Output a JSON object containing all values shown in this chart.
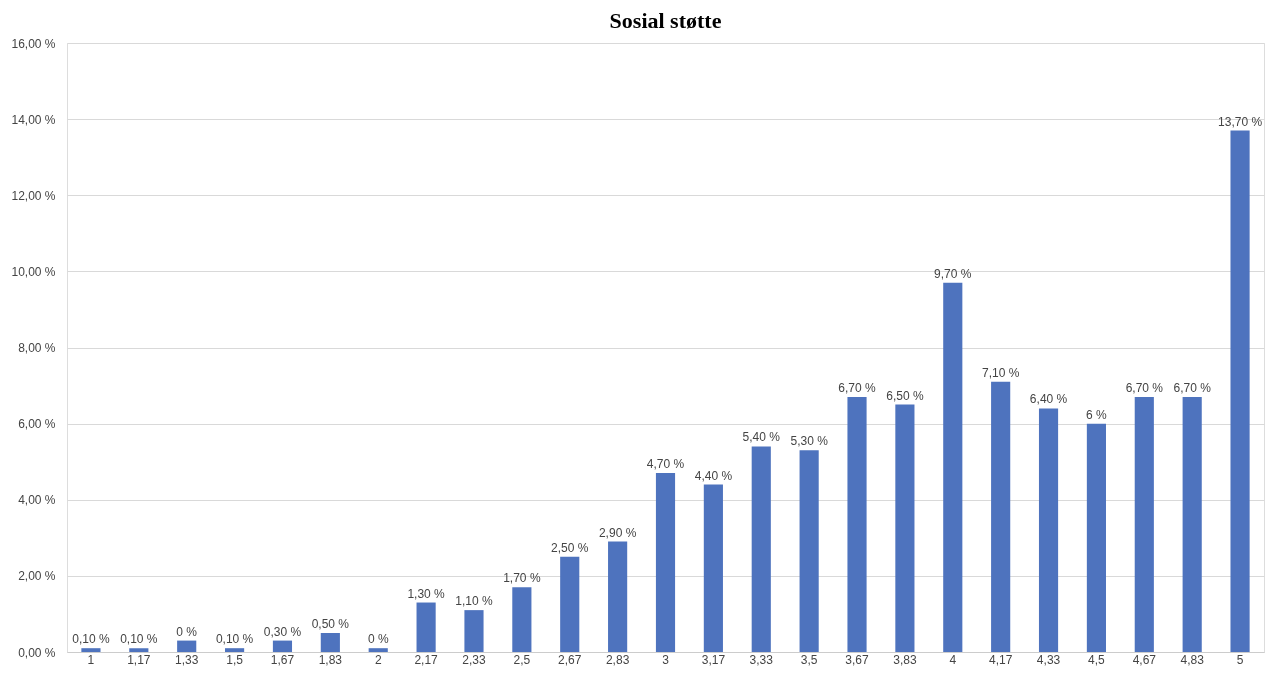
{
  "chart_data": {
    "type": "bar",
    "title": "Sosial støtte",
    "categories": [
      "1",
      "1,17",
      "1,33",
      "1,5",
      "1,67",
      "1,83",
      "2",
      "2,17",
      "2,33",
      "2,5",
      "2,67",
      "2,83",
      "3",
      "3,17",
      "3,33",
      "3,5",
      "3,67",
      "3,83",
      "4",
      "4,17",
      "4,33",
      "4,5",
      "4,67",
      "4,83",
      "5"
    ],
    "values": [
      0.1,
      0.1,
      0.3,
      0.1,
      0.3,
      0.5,
      0.1,
      1.3,
      1.1,
      1.7,
      2.5,
      2.9,
      4.7,
      4.4,
      5.4,
      5.3,
      6.7,
      6.5,
      9.7,
      7.1,
      6.4,
      6.0,
      6.7,
      6.7,
      13.7
    ],
    "value_labels": [
      "0,10 %",
      "0,10 %",
      "0 %",
      "0,10 %",
      "0,30 %",
      "0,50 %",
      "0 %",
      "1,30 %",
      "1,10 %",
      "1,70 %",
      "2,50 %",
      "2,90 %",
      "4,70 %",
      "4,40 %",
      "5,40 %",
      "5,30 %",
      "6,70 %",
      "6,50 %",
      "9,70 %",
      "7,10 %",
      "6,40 %",
      "6 %",
      "6,70 %",
      "6,70 %",
      "13,70 %"
    ],
    "color": "#4e73be",
    "ylim": [
      0,
      16
    ],
    "yticks": [
      {
        "value": 0,
        "label": "0,00 %"
      },
      {
        "value": 2,
        "label": "2,00 %"
      },
      {
        "value": 4,
        "label": "4,00 %"
      },
      {
        "value": 6,
        "label": "6,00 %"
      },
      {
        "value": 8,
        "label": "8,00 %"
      },
      {
        "value": 10,
        "label": "10,00 %"
      },
      {
        "value": 12,
        "label": "12,00 %"
      },
      {
        "value": 14,
        "label": "14,00 %"
      },
      {
        "value": 16,
        "label": "16,00 %"
      }
    ],
    "grid": "y"
  }
}
